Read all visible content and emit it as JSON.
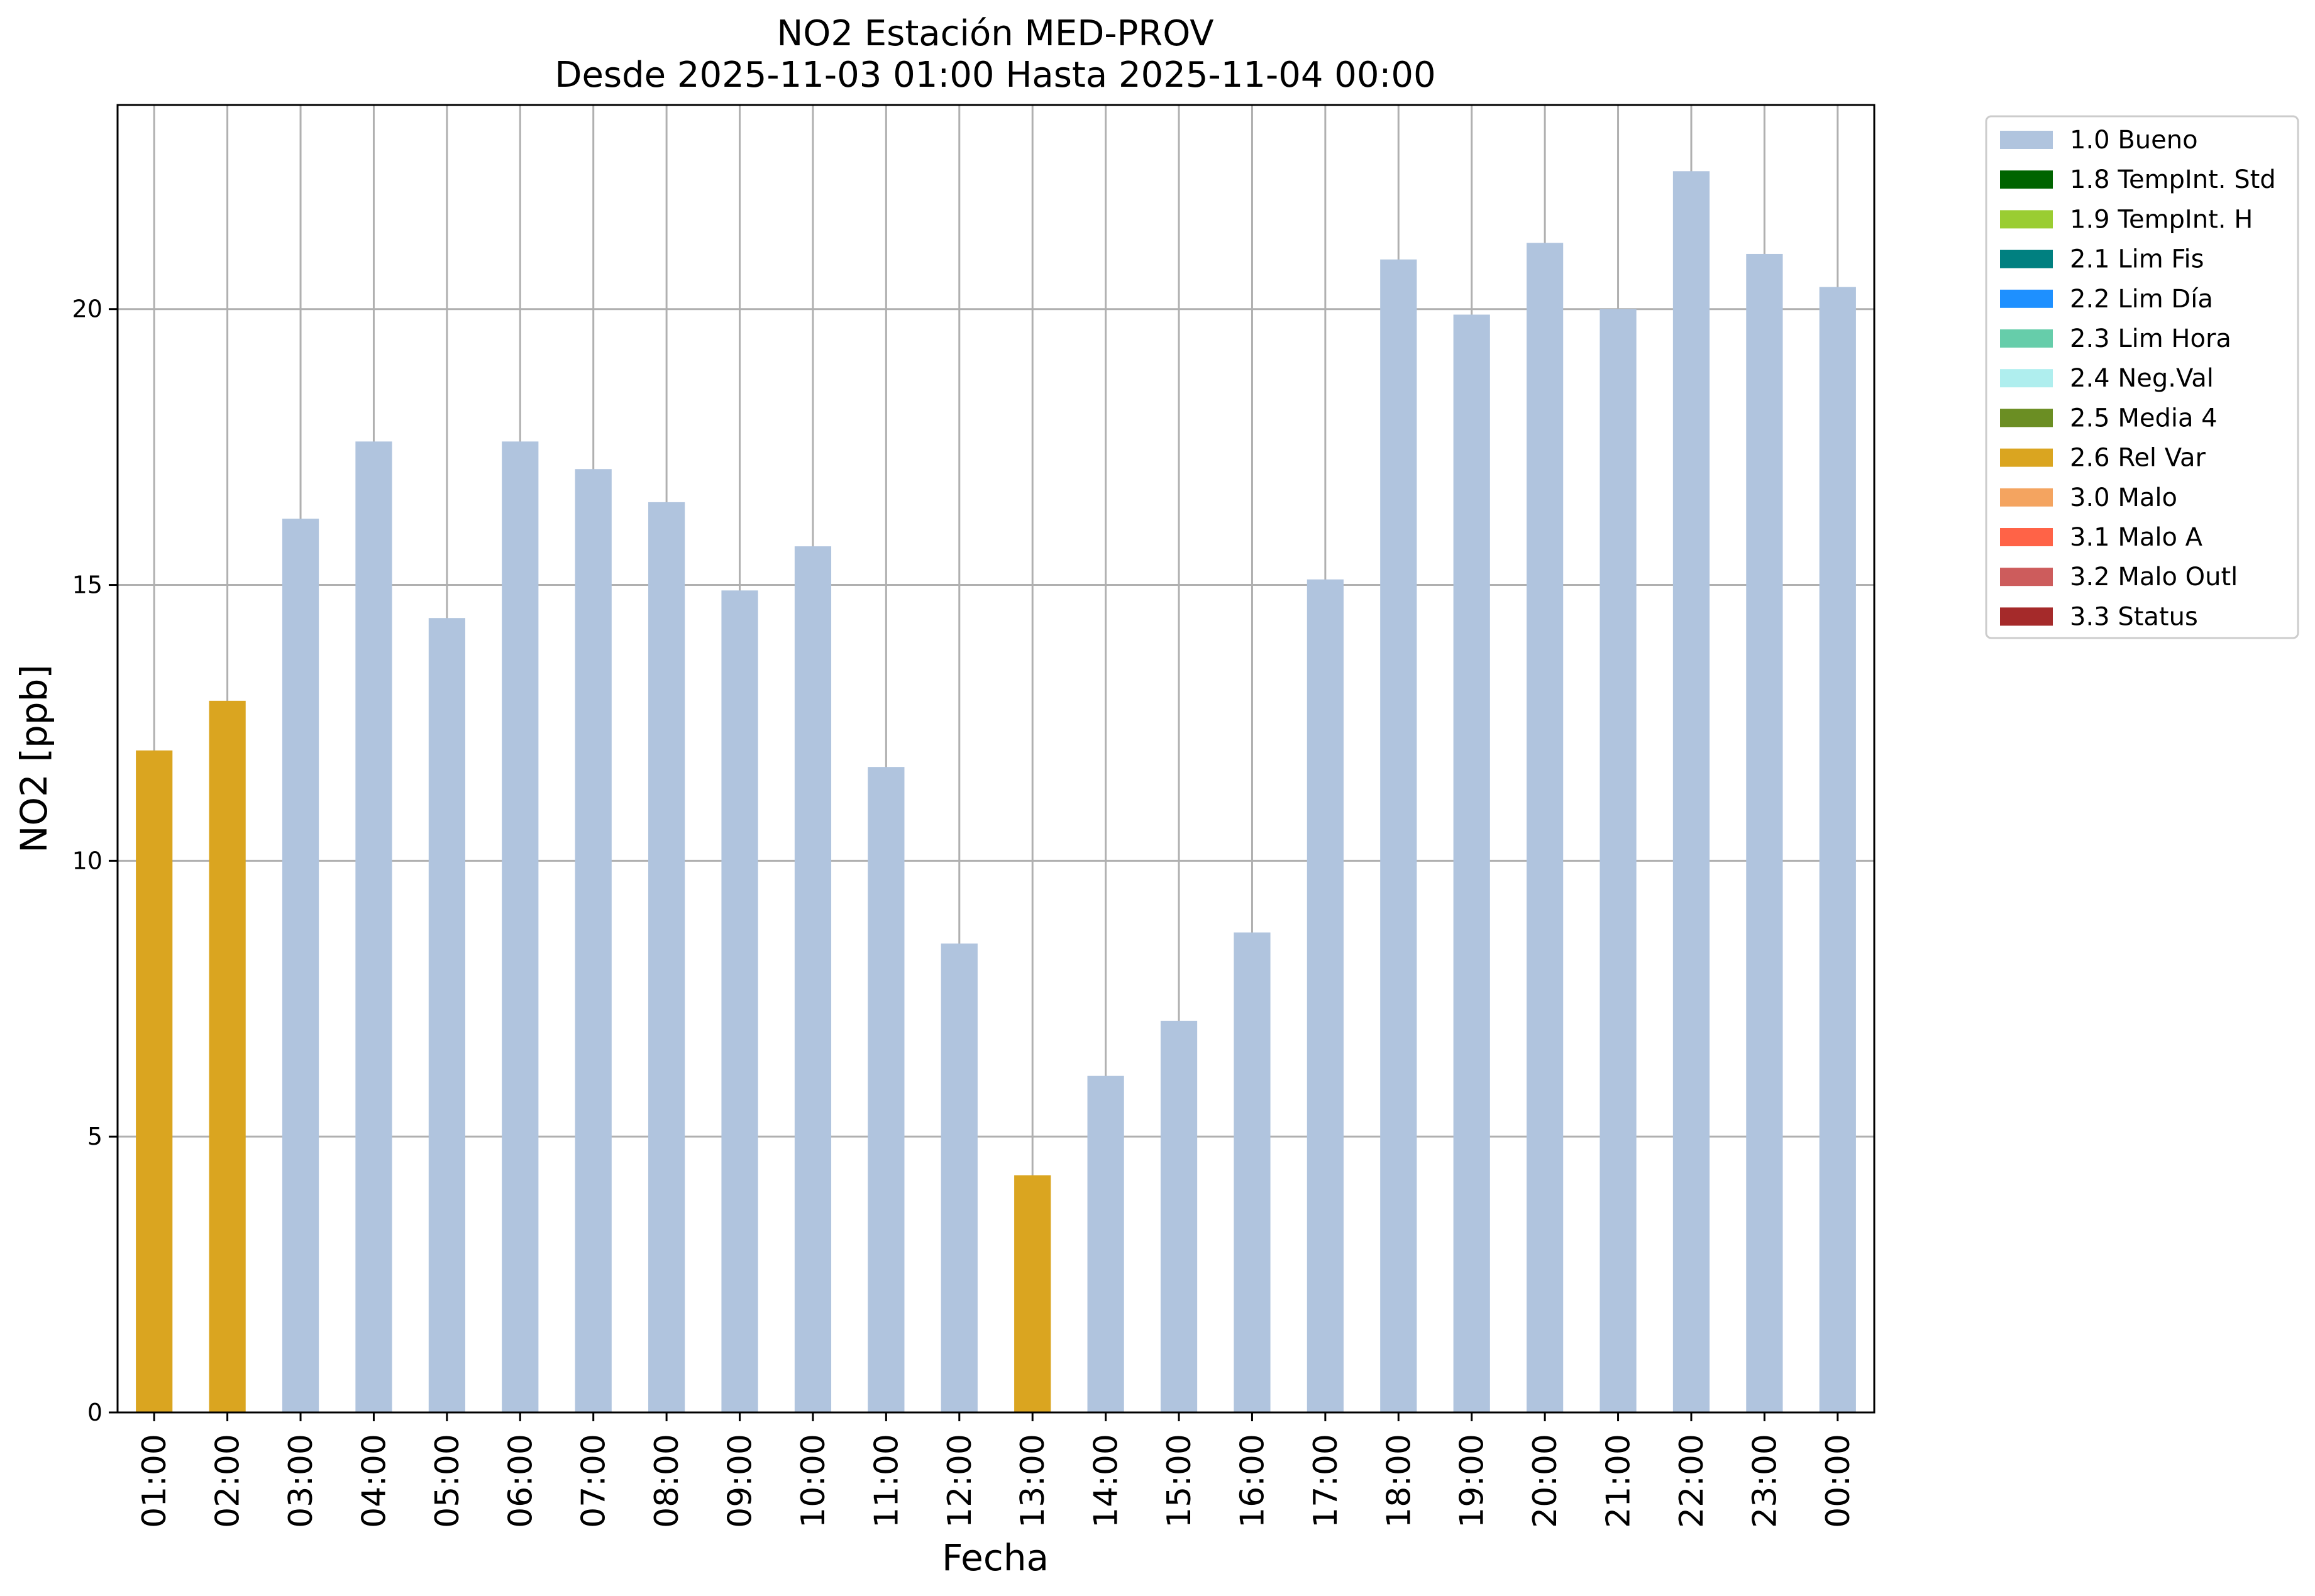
{
  "chart_data": {
    "type": "bar",
    "title_line1": "NO2 Estación MED-PROV",
    "title_line2": "Desde 2025-11-03 01:00 Hasta 2025-11-04 00:00",
    "xlabel": "Fecha",
    "ylabel": "NO2 [ppb]",
    "ylim": [
      0,
      23.7
    ],
    "yticks": [
      0,
      5,
      10,
      15,
      20
    ],
    "grid": true,
    "legend_position": "outside-top-right",
    "categories": [
      "01:00",
      "02:00",
      "03:00",
      "04:00",
      "05:00",
      "06:00",
      "07:00",
      "08:00",
      "09:00",
      "10:00",
      "11:00",
      "12:00",
      "13:00",
      "14:00",
      "15:00",
      "16:00",
      "17:00",
      "18:00",
      "19:00",
      "20:00",
      "21:00",
      "22:00",
      "23:00",
      "00:00"
    ],
    "values": [
      12.0,
      12.9,
      16.2,
      17.6,
      14.4,
      17.6,
      17.1,
      16.5,
      14.9,
      15.7,
      11.7,
      8.5,
      4.3,
      6.1,
      7.1,
      8.7,
      15.1,
      20.9,
      19.9,
      21.2,
      20.0,
      22.5,
      21.0,
      20.4
    ],
    "flags": [
      "2.6 Rel Var",
      "2.6 Rel Var",
      "1.0 Bueno",
      "1.0 Bueno",
      "1.0 Bueno",
      "1.0 Bueno",
      "1.0 Bueno",
      "1.0 Bueno",
      "1.0 Bueno",
      "1.0 Bueno",
      "1.0 Bueno",
      "1.0 Bueno",
      "2.6 Rel Var",
      "1.0 Bueno",
      "1.0 Bueno",
      "1.0 Bueno",
      "1.0 Bueno",
      "1.0 Bueno",
      "1.0 Bueno",
      "1.0 Bueno",
      "1.0 Bueno",
      "1.0 Bueno",
      "1.0 Bueno",
      "1.0 Bueno"
    ],
    "legend": [
      {
        "label": "1.0 Bueno",
        "color": "#b0c4de"
      },
      {
        "label": "1.8 TempInt. Std",
        "color": "#006400"
      },
      {
        "label": "1.9 TempInt. H",
        "color": "#9acd32"
      },
      {
        "label": "2.1 Lim Fis",
        "color": "#008080"
      },
      {
        "label": "2.2 Lim Día",
        "color": "#1e90ff"
      },
      {
        "label": "2.3 Lim Hora",
        "color": "#66cdaa"
      },
      {
        "label": "2.4 Neg.Val",
        "color": "#afeeee"
      },
      {
        "label": "2.5 Media 4",
        "color": "#6b8e23"
      },
      {
        "label": "2.6 Rel Var",
        "color": "#daa520"
      },
      {
        "label": "3.0 Malo",
        "color": "#f4a460"
      },
      {
        "label": "3.1 Malo A",
        "color": "#ff6347"
      },
      {
        "label": "3.2 Malo Outl",
        "color": "#cd5c5c"
      },
      {
        "label": "3.3 Status",
        "color": "#a52a2a"
      }
    ]
  }
}
